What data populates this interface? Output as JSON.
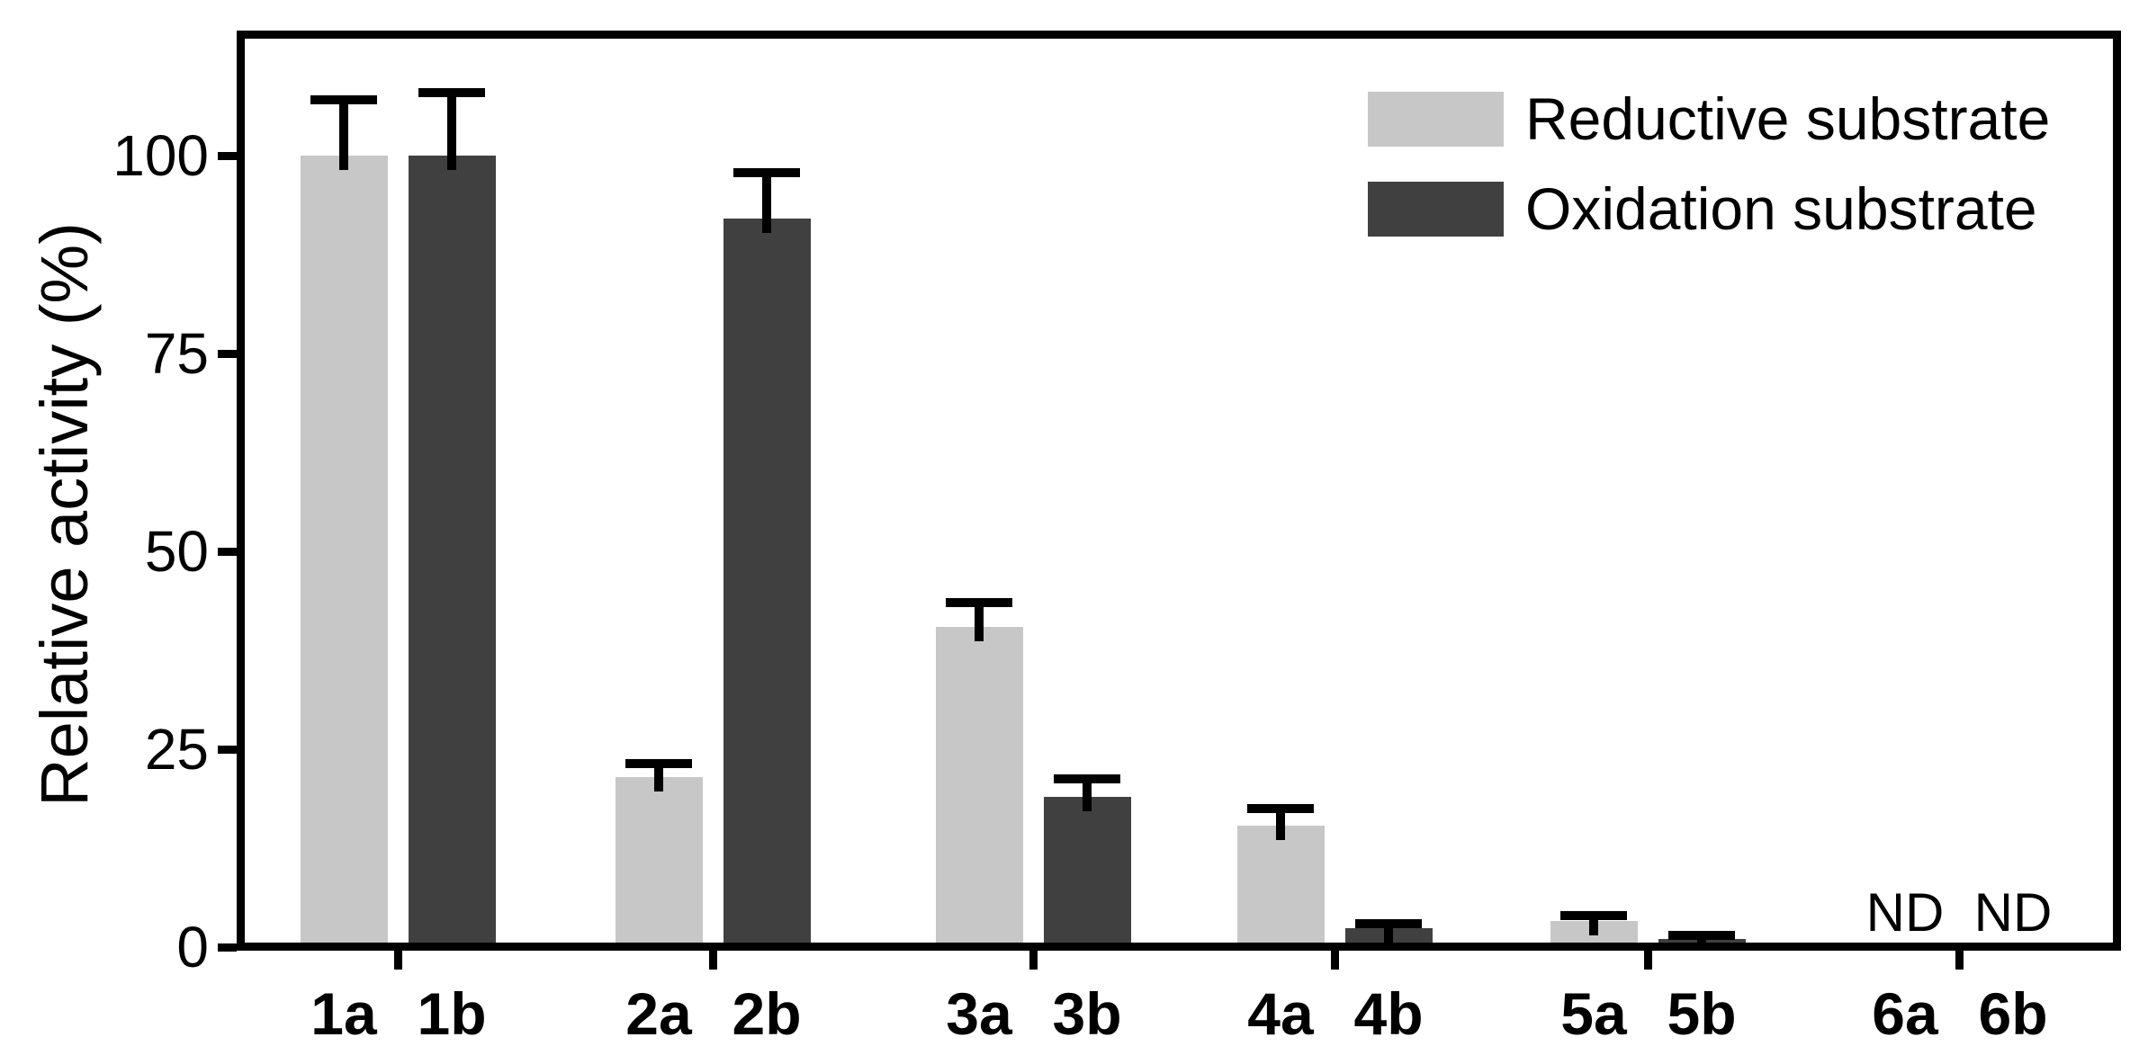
{
  "chart_data": {
    "type": "bar",
    "title": "",
    "ylabel": "Relative activity (%)",
    "xlabel": "",
    "ylim": [
      0,
      115
    ],
    "yticks": [
      0,
      25,
      50,
      75,
      100
    ],
    "grid": false,
    "legend_position": "top-right-inside",
    "axis_color": "#000000",
    "nd_label": "ND",
    "groups": [
      "1",
      "2",
      "3",
      "4",
      "5",
      "6"
    ],
    "categories": [
      "1a",
      "1b",
      "2a",
      "2b",
      "3a",
      "3b",
      "4a",
      "4b",
      "5a",
      "5b",
      "6a",
      "6b"
    ],
    "series": [
      {
        "name": "Reductive substrate",
        "color": "#c7c7c7",
        "labels": [
          "1a",
          "2a",
          "3a",
          "4a",
          "5a",
          "6a"
        ],
        "values": [
          100,
          21.5,
          40.5,
          15.3,
          3.3,
          null
        ],
        "errors": [
          7,
          1.7,
          3,
          2.2,
          0.7,
          null
        ],
        "not_detected": [
          false,
          false,
          false,
          false,
          false,
          true
        ]
      },
      {
        "name": "Oxidation substrate",
        "color": "#404040",
        "labels": [
          "1b",
          "2b",
          "3b",
          "4b",
          "5b",
          "6b"
        ],
        "values": [
          100,
          92,
          19,
          2.4,
          1.0,
          null
        ],
        "errors": [
          8,
          5.8,
          2.3,
          0.5,
          0.5,
          null
        ],
        "not_detected": [
          false,
          false,
          false,
          false,
          false,
          true
        ]
      }
    ]
  }
}
